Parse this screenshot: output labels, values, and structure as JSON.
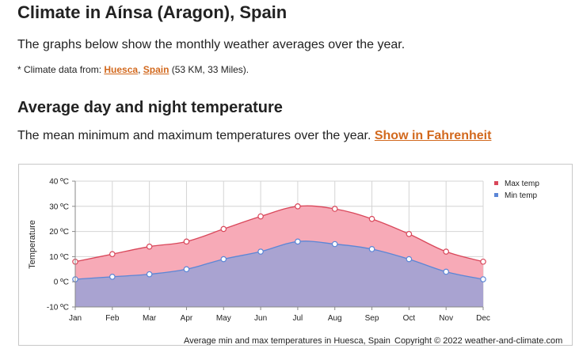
{
  "header": {
    "title": "Climate in Aínsa (Aragon), Spain",
    "intro": "The graphs below show the monthly weather averages over the year.",
    "source_prefix": "* Climate data from: ",
    "source_link_1": "Huesca",
    "source_sep": ", ",
    "source_link_2": "Spain",
    "source_suffix": " (53 KM, 33 Miles)."
  },
  "section": {
    "title": "Average day and night temperature",
    "description": "The mean minimum and maximum temperatures over the year. ",
    "toggle_link": "Show in Fahrenheit"
  },
  "chart_data": {
    "type": "area",
    "categories": [
      "Jan",
      "Feb",
      "Mar",
      "Apr",
      "May",
      "Jun",
      "Jul",
      "Aug",
      "Sep",
      "Oct",
      "Nov",
      "Dec"
    ],
    "series": [
      {
        "name": "Max temp",
        "values": [
          8,
          11,
          14,
          16,
          21,
          26,
          30,
          29,
          25,
          19,
          12,
          8
        ],
        "color": "#d9475a",
        "fill": "#f7aab7"
      },
      {
        "name": "Min temp",
        "values": [
          1,
          2,
          3,
          5,
          9,
          12,
          16,
          15,
          13,
          9,
          4,
          1
        ],
        "color": "#5b86d6",
        "fill": "#a9a3d1"
      }
    ],
    "yticks": [
      "-10 ºC",
      "0 ºC",
      "10 ºC",
      "20 ºC",
      "30 ºC",
      "40 ºC"
    ],
    "ylabel": "Temperature",
    "ylim": [
      -10,
      40
    ],
    "grid": true,
    "legend_position": "top-right",
    "caption": "Average min and max temperatures in Huesca, Spain",
    "copyright": "Copyright © 2022  weather-and-climate.com"
  }
}
